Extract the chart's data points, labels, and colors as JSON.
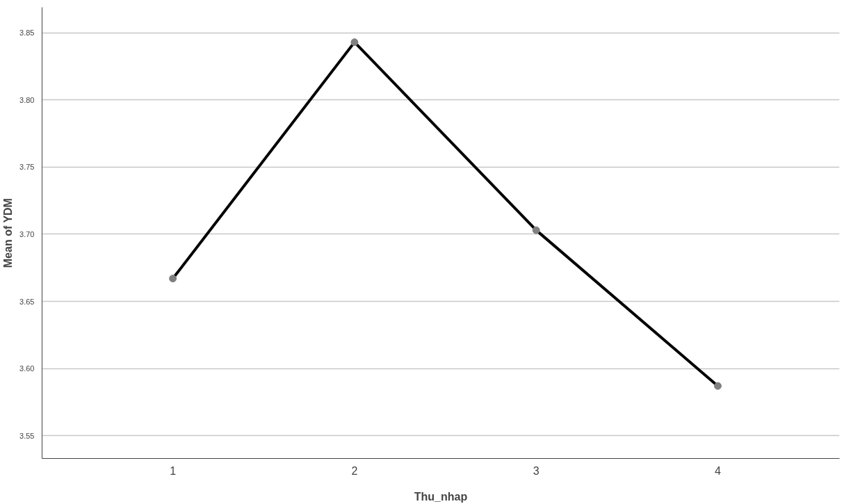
{
  "chart_data": {
    "type": "line",
    "xlabel": "Thu_nhap",
    "ylabel": "Mean of YDM",
    "categories": [
      "1",
      "2",
      "3",
      "4"
    ],
    "series": [
      {
        "color": "#000000",
        "values": [
          3.667,
          3.843,
          3.703,
          3.587
        ]
      }
    ],
    "ylim": [
      3.533,
      3.869
    ],
    "yticks": [
      {
        "value": 3.55,
        "label": "3.55"
      },
      {
        "value": 3.6,
        "label": "3.60"
      },
      {
        "value": 3.65,
        "label": "3.65"
      },
      {
        "value": 3.7,
        "label": "3.70"
      },
      {
        "value": 3.75,
        "label": "3.75"
      },
      {
        "value": 3.8,
        "label": "3.80"
      },
      {
        "value": 3.85,
        "label": "3.85"
      }
    ],
    "grid": "y",
    "marker": "circle",
    "line_style": "solid"
  }
}
